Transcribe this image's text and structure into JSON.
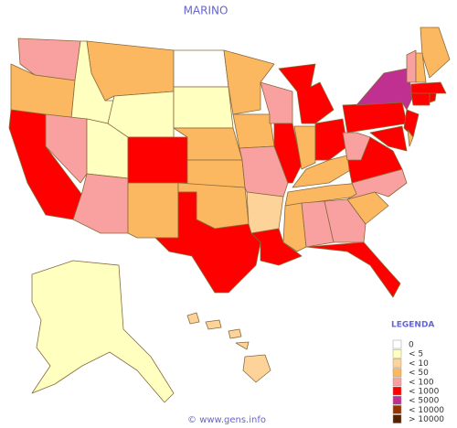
{
  "map": {
    "title": "MARINO",
    "legend": {
      "title": "LEGENDA",
      "items": [
        {
          "label": "0",
          "color": "#ffffff"
        },
        {
          "label": "< 5",
          "color": "#ffffc0"
        },
        {
          "label": "< 10",
          "color": "#fdd39a"
        },
        {
          "label": "< 50",
          "color": "#fbb860"
        },
        {
          "label": "< 100",
          "color": "#f9a0a0"
        },
        {
          "label": "< 1000",
          "color": "#ff0000"
        },
        {
          "label": "< 5000",
          "color": "#c03090"
        },
        {
          "label": "< 10000",
          "color": "#993300"
        },
        {
          "label": "> 10000",
          "color": "#552200"
        }
      ]
    },
    "footer": "© www.gens.info"
  }
}
